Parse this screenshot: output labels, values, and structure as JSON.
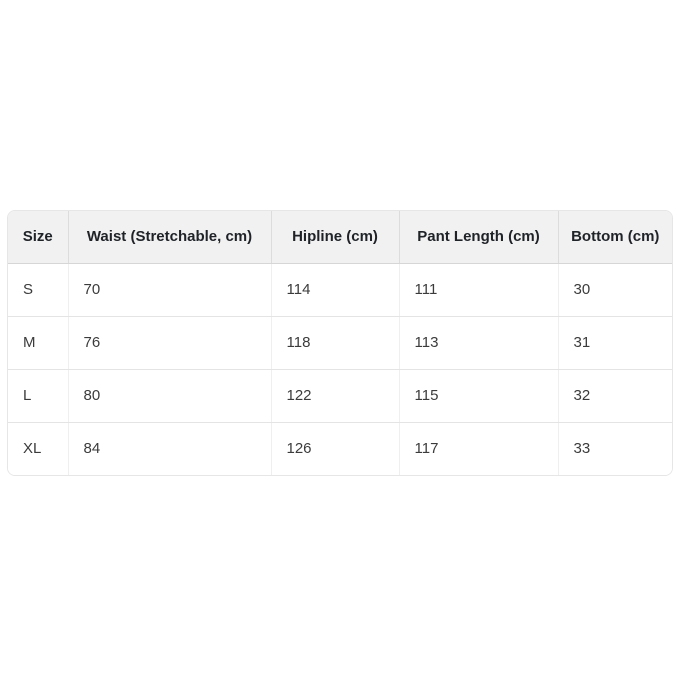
{
  "colors": {
    "page_background": "#ffffff",
    "header_background": "#f1f1f1",
    "row_background": "#ffffff",
    "grid_border": "#e0e0e0",
    "header_text": "#1f2328",
    "body_text": "#3b3b3b"
  },
  "chart_data": {
    "type": "table",
    "columns": [
      "Size",
      "Waist (Stretchable, cm)",
      "Hipline (cm)",
      "Pant Length (cm)",
      "Bottom (cm)"
    ],
    "rows": [
      [
        "S",
        70,
        114,
        111,
        30
      ],
      [
        "M",
        76,
        118,
        113,
        31
      ],
      [
        "L",
        80,
        122,
        115,
        32
      ],
      [
        "XL",
        84,
        126,
        117,
        33
      ]
    ],
    "layout": {
      "header_align": "center",
      "body_align": "left",
      "grid": "full",
      "corner_radius_px": 8
    }
  }
}
